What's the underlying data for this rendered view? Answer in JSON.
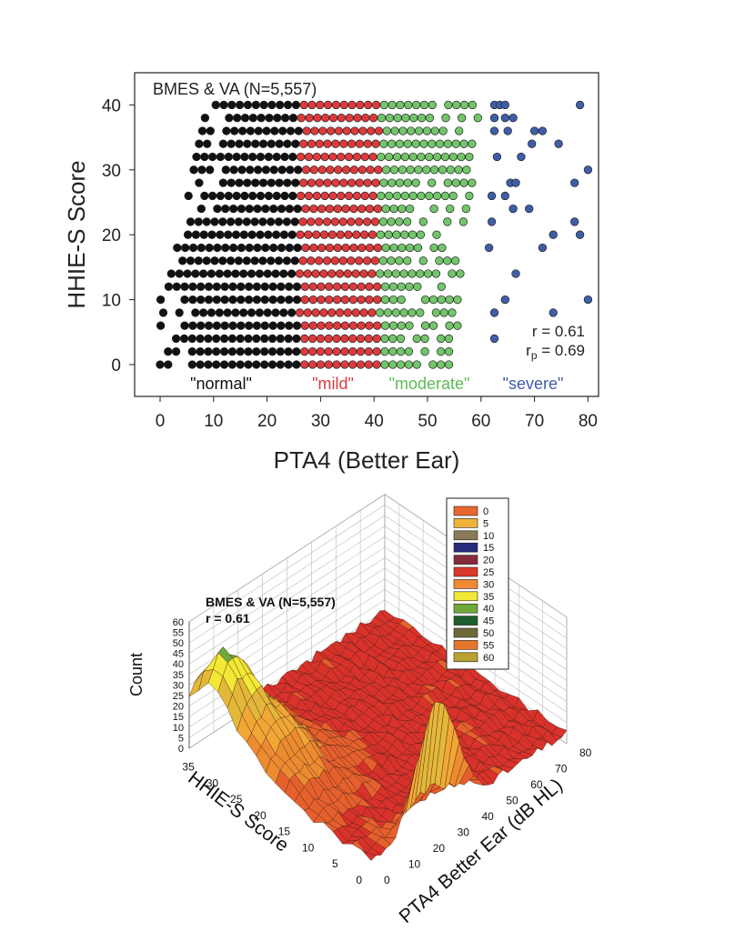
{
  "chart_data": [
    {
      "type": "scatter",
      "annotation": "BMES & VA (N=5,557)",
      "xlabel": "PTA4 (Better Ear)",
      "ylabel": "HHIE-S Score",
      "xlim": [
        -5,
        82
      ],
      "ylim": [
        -5,
        45
      ],
      "xticks": [
        "0",
        "10",
        "20",
        "30",
        "40",
        "50",
        "60",
        "70",
        "80"
      ],
      "yticks": [
        "0",
        "10",
        "20",
        "30",
        "40"
      ],
      "grid": false,
      "stats": {
        "r_label": "r = 0.61",
        "rp_main": "r",
        "rp_sub": "p",
        "rp_rest": " = 0.69"
      },
      "categories": [
        {
          "name": "normal",
          "label": "\"normal\"",
          "range": [
            0,
            26
          ],
          "color": "#111111"
        },
        {
          "name": "mild",
          "label": "\"mild\"",
          "range": [
            26,
            41
          ],
          "color": "#dd3a3c"
        },
        {
          "name": "moderate",
          "label": "\"moderate\"",
          "range": [
            41,
            61
          ],
          "color": "#72c66a"
        },
        {
          "name": "severe",
          "label": "\"severe\"",
          "range": [
            61,
            81
          ],
          "color": "#3f5ea8"
        }
      ],
      "point_rule": "Points at even HHIE-S scores 0-40 and PTA4 steps of 1.5 dB; density band widens with score (r=0.61); sparse outliers in severe range",
      "severe_outliers": [
        {
          "x": 62.5,
          "y": 40
        },
        {
          "x": 63.5,
          "y": 40
        },
        {
          "x": 64.5,
          "y": 40
        },
        {
          "x": 78.5,
          "y": 40
        },
        {
          "x": 62.5,
          "y": 38
        },
        {
          "x": 64.5,
          "y": 38
        },
        {
          "x": 66,
          "y": 38
        },
        {
          "x": 62.5,
          "y": 36
        },
        {
          "x": 65,
          "y": 36
        },
        {
          "x": 70,
          "y": 36
        },
        {
          "x": 71.5,
          "y": 36
        },
        {
          "x": 69.5,
          "y": 34
        },
        {
          "x": 74.5,
          "y": 34
        },
        {
          "x": 63,
          "y": 32
        },
        {
          "x": 67.5,
          "y": 32
        },
        {
          "x": 80,
          "y": 30
        },
        {
          "x": 65.5,
          "y": 28
        },
        {
          "x": 66.5,
          "y": 28
        },
        {
          "x": 77.5,
          "y": 28
        },
        {
          "x": 62,
          "y": 26
        },
        {
          "x": 64.5,
          "y": 26
        },
        {
          "x": 66,
          "y": 24
        },
        {
          "x": 69,
          "y": 24
        },
        {
          "x": 77.5,
          "y": 22
        },
        {
          "x": 62,
          "y": 22
        },
        {
          "x": 73.5,
          "y": 20
        },
        {
          "x": 78.5,
          "y": 20
        },
        {
          "x": 71.5,
          "y": 18
        },
        {
          "x": 61.5,
          "y": 18
        },
        {
          "x": 66.5,
          "y": 14
        },
        {
          "x": 62.5,
          "y": 8
        },
        {
          "x": 73.5,
          "y": 8
        },
        {
          "x": 80,
          "y": 10
        },
        {
          "x": 64.5,
          "y": 10
        },
        {
          "x": 62.5,
          "y": 4
        }
      ]
    },
    {
      "type": "surface3d",
      "title": "BMES & VA (N=5,557)",
      "stats_label": "r = 0.61",
      "zlabel": "Count",
      "xlabel": "PTA4 Better Ear (dB HL)",
      "ylabel": "HHIE-S Score",
      "zlim": [
        0,
        60
      ],
      "zticks": [
        "0",
        "5",
        "10",
        "15",
        "20",
        "25",
        "30",
        "35",
        "40",
        "45",
        "50",
        "55",
        "60"
      ],
      "xticks": [
        "0",
        "10",
        "20",
        "30",
        "40",
        "50",
        "60",
        "70",
        "80"
      ],
      "yticks": [
        "0",
        "5",
        "10",
        "15",
        "20",
        "25",
        "30",
        "35"
      ],
      "legend": {
        "position": "top-right",
        "entries": [
          {
            "label": "0",
            "color": "#e8672d"
          },
          {
            "label": "5",
            "color": "#f0b33a"
          },
          {
            "label": "10",
            "color": "#8a7a58"
          },
          {
            "label": "15",
            "color": "#262a7a"
          },
          {
            "label": "20",
            "color": "#852c3a"
          },
          {
            "label": "25",
            "color": "#d93a2a"
          },
          {
            "label": "30",
            "color": "#ef8a32"
          },
          {
            "label": "35",
            "color": "#f2e836"
          },
          {
            "label": "40",
            "color": "#6fa83a"
          },
          {
            "label": "45",
            "color": "#1d5e2c"
          },
          {
            "label": "50",
            "color": "#6f6a3a"
          },
          {
            "label": "55",
            "color": "#e6752d"
          },
          {
            "label": "60",
            "color": "#b8a033"
          }
        ]
      },
      "surface_note": "Ridge of counts along HHIE-S 0-2 peaking near 60 at PTA4 ~15-30 dB HL; broad ridge ~30-40 along low PTA4"
    }
  ]
}
